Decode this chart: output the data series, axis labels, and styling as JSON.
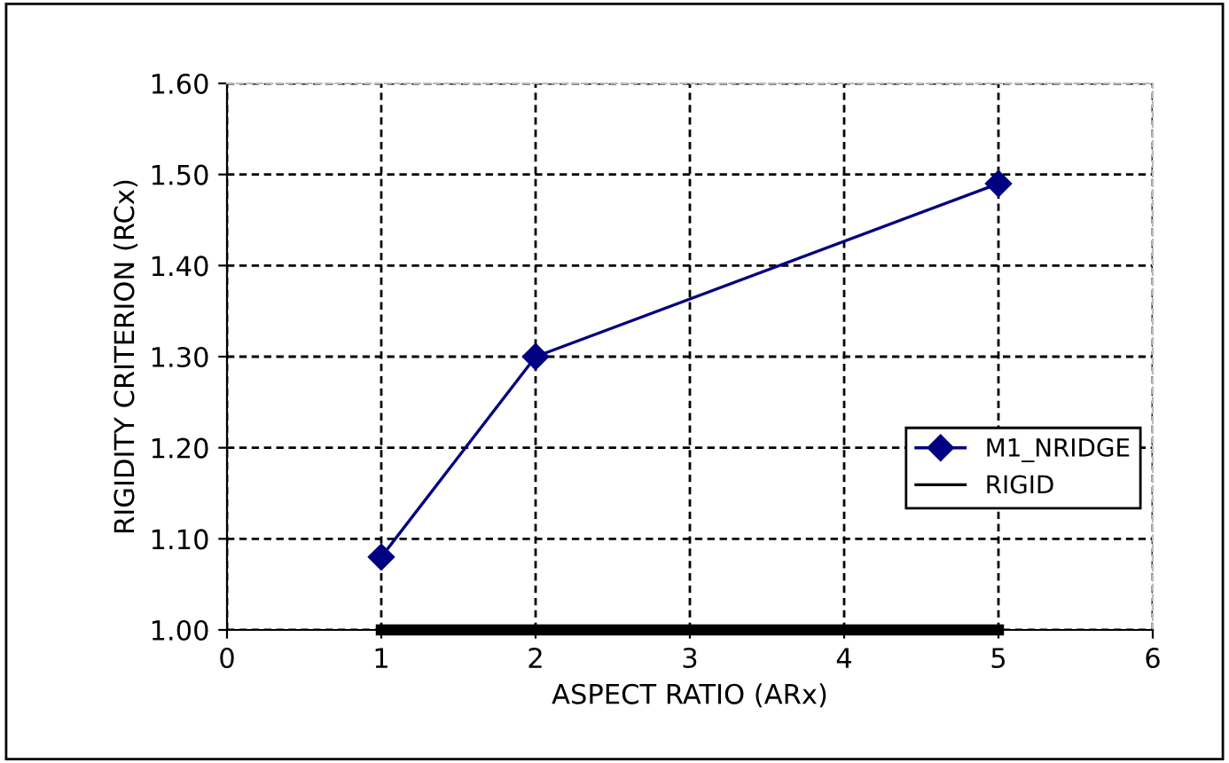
{
  "chart_data": {
    "type": "line",
    "xlabel": "ASPECT RATIO (ARx)",
    "ylabel": "RIGIDITY CRITERION (RCx)",
    "series": [
      {
        "name": "M1_NRIDGE",
        "color": "#000080",
        "x": [
          1,
          2,
          5
        ],
        "values": [
          1.08,
          1.3,
          1.49
        ],
        "marker": "diamond"
      },
      {
        "name": "RIGID",
        "color": "#000000",
        "x": [
          1,
          2,
          5
        ],
        "values": [
          1.0,
          1.0,
          1.0
        ],
        "marker": "none"
      }
    ],
    "xlim": [
      0,
      6
    ],
    "xticks": [
      0,
      1,
      2,
      3,
      4,
      5,
      6
    ],
    "ylim": [
      1.0,
      1.6
    ],
    "yticks": [
      {
        "value": 1.0,
        "label": "1.00"
      },
      {
        "value": 1.1,
        "label": "1.10"
      },
      {
        "value": 1.2,
        "label": "1.20"
      },
      {
        "value": 1.3,
        "label": "1.30"
      },
      {
        "value": 1.4,
        "label": "1.40"
      },
      {
        "value": 1.5,
        "label": "1.50"
      },
      {
        "value": 1.6,
        "label": "1.60"
      }
    ],
    "grid": true,
    "legend": "right",
    "line_style": "solid"
  }
}
